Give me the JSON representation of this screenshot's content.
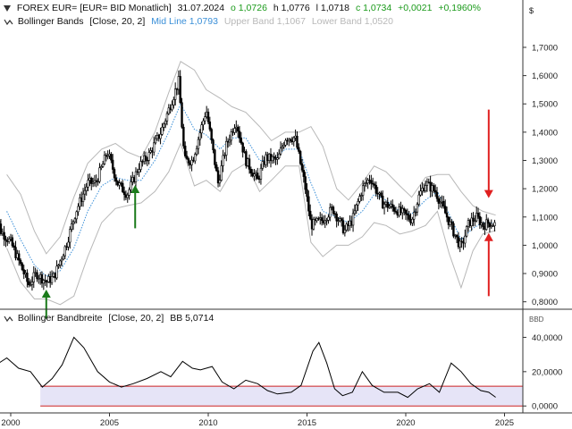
{
  "header": {
    "instrument": "FOREX EUR= [EUR= BID Monatlich]",
    "date": "31.07.2024",
    "open_label": "o 1,0726",
    "high_label": "h 1,0776",
    "low_label": "l 1,0718",
    "close_label": "c 1,0734",
    "change_label": "+0,0021",
    "change_pct_label": "+0,1960%",
    "currency_symbol": "$"
  },
  "indicator_legend": {
    "bands_label": "Bollinger Bands",
    "bands_params": "[Close, 20, 2]",
    "mid_label": "Mid Line 1,0793",
    "upper_label": "Upper Band 1,1067",
    "lower_label": "Lower Band 1,0520"
  },
  "lower_legend": {
    "label": "Bollinger Bandbreite",
    "params": "[Close, 20, 2]",
    "value_label": "BB 5,0714",
    "unit": "BBD"
  },
  "colors": {
    "candle_up": "#ffffff",
    "candle_down": "#000000",
    "mid_line": "#3a8fd8",
    "bands": "#b8b8b8",
    "arrow_up": "#1a7a1a",
    "arrow_down": "#e02020",
    "bandwidth_line": "#000000",
    "zone_fill": "#e6e4f7",
    "zone_border": "#cc2222",
    "change_positive": "#1a9a1a"
  },
  "chart_data": [
    {
      "type": "candlestick",
      "title": "FOREX EUR= [EUR= BID Monatlich]",
      "x_range": [
        1999.0,
        2025.0
      ],
      "y_range": [
        0.78,
        1.76
      ],
      "y_ticks": [
        "0,8000",
        "0,9000",
        "1,0000",
        "1,1000",
        "1,2000",
        "1,3000",
        "1,4000",
        "1,5000",
        "1,6000",
        "1,7000"
      ],
      "x_ticks": [
        "2000",
        "2005",
        "2010",
        "2015",
        "2020",
        "2025"
      ],
      "price_points": [
        [
          1999.0,
          1.17
        ],
        [
          1999.5,
          1.05
        ],
        [
          2000.0,
          1.01
        ],
        [
          2000.5,
          0.93
        ],
        [
          2000.9,
          0.86
        ],
        [
          2001.3,
          0.9
        ],
        [
          2001.8,
          0.87
        ],
        [
          2002.2,
          0.89
        ],
        [
          2002.8,
          1.0
        ],
        [
          2003.3,
          1.12
        ],
        [
          2003.9,
          1.22
        ],
        [
          2004.3,
          1.22
        ],
        [
          2004.9,
          1.33
        ],
        [
          2005.4,
          1.22
        ],
        [
          2005.9,
          1.18
        ],
        [
          2006.5,
          1.28
        ],
        [
          2007.0,
          1.32
        ],
        [
          2007.6,
          1.4
        ],
        [
          2008.0,
          1.48
        ],
        [
          2008.5,
          1.58
        ],
        [
          2008.8,
          1.3
        ],
        [
          2009.2,
          1.3
        ],
        [
          2009.9,
          1.48
        ],
        [
          2010.5,
          1.22
        ],
        [
          2010.9,
          1.35
        ],
        [
          2011.4,
          1.44
        ],
        [
          2011.9,
          1.3
        ],
        [
          2012.5,
          1.23
        ],
        [
          2012.9,
          1.31
        ],
        [
          2013.5,
          1.3
        ],
        [
          2013.9,
          1.38
        ],
        [
          2014.4,
          1.38
        ],
        [
          2014.9,
          1.21
        ],
        [
          2015.2,
          1.07
        ],
        [
          2015.8,
          1.09
        ],
        [
          2016.3,
          1.13
        ],
        [
          2016.9,
          1.05
        ],
        [
          2017.3,
          1.09
        ],
        [
          2017.8,
          1.2
        ],
        [
          2018.2,
          1.24
        ],
        [
          2018.8,
          1.15
        ],
        [
          2019.4,
          1.13
        ],
        [
          2019.9,
          1.11
        ],
        [
          2020.3,
          1.09
        ],
        [
          2020.7,
          1.18
        ],
        [
          2021.0,
          1.22
        ],
        [
          2021.5,
          1.19
        ],
        [
          2021.9,
          1.13
        ],
        [
          2022.4,
          1.05
        ],
        [
          2022.8,
          0.99
        ],
        [
          2023.2,
          1.08
        ],
        [
          2023.6,
          1.1
        ],
        [
          2023.9,
          1.07
        ],
        [
          2024.2,
          1.08
        ],
        [
          2024.55,
          1.0734
        ]
      ],
      "mid_line_points": [
        [
          1999.8,
          1.12
        ],
        [
          2000.5,
          1.02
        ],
        [
          2001.2,
          0.93
        ],
        [
          2001.8,
          0.89
        ],
        [
          2002.5,
          0.91
        ],
        [
          2003.2,
          0.99
        ],
        [
          2003.9,
          1.12
        ],
        [
          2004.6,
          1.21
        ],
        [
          2005.3,
          1.24
        ],
        [
          2005.9,
          1.23
        ],
        [
          2006.6,
          1.23
        ],
        [
          2007.3,
          1.3
        ],
        [
          2008.0,
          1.4
        ],
        [
          2008.6,
          1.5
        ],
        [
          2009.3,
          1.41
        ],
        [
          2009.9,
          1.39
        ],
        [
          2010.6,
          1.34
        ],
        [
          2011.2,
          1.38
        ],
        [
          2011.9,
          1.38
        ],
        [
          2012.6,
          1.3
        ],
        [
          2013.2,
          1.3
        ],
        [
          2013.9,
          1.34
        ],
        [
          2014.6,
          1.34
        ],
        [
          2015.2,
          1.22
        ],
        [
          2015.8,
          1.12
        ],
        [
          2016.5,
          1.1
        ],
        [
          2017.1,
          1.08
        ],
        [
          2017.8,
          1.12
        ],
        [
          2018.4,
          1.18
        ],
        [
          2019.0,
          1.16
        ],
        [
          2019.7,
          1.12
        ],
        [
          2020.3,
          1.11
        ],
        [
          2021.0,
          1.16
        ],
        [
          2021.6,
          1.19
        ],
        [
          2022.2,
          1.11
        ],
        [
          2022.8,
          1.02
        ],
        [
          2023.4,
          1.06
        ],
        [
          2023.9,
          1.08
        ],
        [
          2024.55,
          1.0793
        ]
      ],
      "upper_band_points": [
        [
          1999.8,
          1.25
        ],
        [
          2000.5,
          1.18
        ],
        [
          2001.2,
          1.05
        ],
        [
          2001.8,
          0.97
        ],
        [
          2002.5,
          1.03
        ],
        [
          2003.2,
          1.17
        ],
        [
          2003.9,
          1.29
        ],
        [
          2004.6,
          1.34
        ],
        [
          2005.3,
          1.36
        ],
        [
          2005.9,
          1.33
        ],
        [
          2006.6,
          1.31
        ],
        [
          2007.3,
          1.4
        ],
        [
          2008.0,
          1.54
        ],
        [
          2008.6,
          1.65
        ],
        [
          2009.3,
          1.62
        ],
        [
          2009.9,
          1.55
        ],
        [
          2010.6,
          1.52
        ],
        [
          2011.2,
          1.49
        ],
        [
          2011.9,
          1.47
        ],
        [
          2012.6,
          1.42
        ],
        [
          2013.2,
          1.37
        ],
        [
          2013.9,
          1.4
        ],
        [
          2014.6,
          1.4
        ],
        [
          2015.2,
          1.42
        ],
        [
          2015.8,
          1.35
        ],
        [
          2016.5,
          1.2
        ],
        [
          2017.1,
          1.16
        ],
        [
          2017.8,
          1.22
        ],
        [
          2018.4,
          1.28
        ],
        [
          2019.0,
          1.26
        ],
        [
          2019.7,
          1.21
        ],
        [
          2020.3,
          1.17
        ],
        [
          2021.0,
          1.24
        ],
        [
          2021.6,
          1.25
        ],
        [
          2022.2,
          1.25
        ],
        [
          2022.8,
          1.19
        ],
        [
          2023.4,
          1.14
        ],
        [
          2023.9,
          1.12
        ],
        [
          2024.55,
          1.1067
        ]
      ],
      "lower_band_points": [
        [
          1999.8,
          0.99
        ],
        [
          2000.5,
          0.87
        ],
        [
          2001.2,
          0.81
        ],
        [
          2001.8,
          0.81
        ],
        [
          2002.5,
          0.79
        ],
        [
          2003.2,
          0.82
        ],
        [
          2003.9,
          0.96
        ],
        [
          2004.6,
          1.08
        ],
        [
          2005.3,
          1.13
        ],
        [
          2005.9,
          1.14
        ],
        [
          2006.6,
          1.15
        ],
        [
          2007.3,
          1.19
        ],
        [
          2008.0,
          1.26
        ],
        [
          2008.6,
          1.36
        ],
        [
          2009.3,
          1.21
        ],
        [
          2009.9,
          1.23
        ],
        [
          2010.6,
          1.19
        ],
        [
          2011.2,
          1.26
        ],
        [
          2011.9,
          1.29
        ],
        [
          2012.6,
          1.19
        ],
        [
          2013.2,
          1.23
        ],
        [
          2013.9,
          1.28
        ],
        [
          2014.6,
          1.28
        ],
        [
          2015.2,
          1.01
        ],
        [
          2015.8,
          0.96
        ],
        [
          2016.5,
          1.0
        ],
        [
          2017.1,
          1.0
        ],
        [
          2017.8,
          1.03
        ],
        [
          2018.4,
          1.08
        ],
        [
          2019.0,
          1.07
        ],
        [
          2019.7,
          1.04
        ],
        [
          2020.3,
          1.05
        ],
        [
          2021.0,
          1.07
        ],
        [
          2021.6,
          1.12
        ],
        [
          2022.2,
          0.97
        ],
        [
          2022.8,
          0.85
        ],
        [
          2023.4,
          0.98
        ],
        [
          2023.9,
          1.04
        ],
        [
          2024.55,
          1.052
        ]
      ],
      "annotations": [
        {
          "kind": "arrow-up",
          "x": 2001.8,
          "from_y": 0.74,
          "to_y": 0.84
        },
        {
          "kind": "arrow-up",
          "x": 2006.3,
          "from_y": 1.06,
          "to_y": 1.21
        },
        {
          "kind": "arrow-down",
          "x": 2024.2,
          "from_y": 1.48,
          "to_y": 1.17
        },
        {
          "kind": "arrow-up",
          "x": 2024.2,
          "from_y": 0.82,
          "to_y": 1.04
        }
      ]
    },
    {
      "type": "line",
      "title": "Bollinger Bandbreite",
      "x_range": [
        1999.0,
        2025.0
      ],
      "y_range": [
        -3,
        47
      ],
      "y_ticks": [
        "0,0000",
        "20,0000",
        "40,0000"
      ],
      "points": [
        [
          1999.0,
          22
        ],
        [
          1999.8,
          28
        ],
        [
          2000.4,
          22
        ],
        [
          2001.0,
          20
        ],
        [
          2001.6,
          11
        ],
        [
          2002.1,
          16
        ],
        [
          2002.6,
          24
        ],
        [
          2003.2,
          40
        ],
        [
          2003.7,
          34
        ],
        [
          2004.4,
          20
        ],
        [
          2005.0,
          14
        ],
        [
          2005.6,
          11
        ],
        [
          2006.2,
          13
        ],
        [
          2006.9,
          16
        ],
        [
          2007.6,
          20
        ],
        [
          2008.1,
          17
        ],
        [
          2008.7,
          26
        ],
        [
          2009.2,
          22
        ],
        [
          2009.6,
          21
        ],
        [
          2010.2,
          23
        ],
        [
          2010.7,
          14
        ],
        [
          2011.3,
          10
        ],
        [
          2011.9,
          15
        ],
        [
          2012.5,
          13
        ],
        [
          2013.0,
          9
        ],
        [
          2013.5,
          7
        ],
        [
          2014.2,
          8
        ],
        [
          2014.7,
          12
        ],
        [
          2015.3,
          32
        ],
        [
          2015.6,
          37
        ],
        [
          2016.0,
          25
        ],
        [
          2016.4,
          10
        ],
        [
          2016.8,
          6
        ],
        [
          2017.3,
          8
        ],
        [
          2017.8,
          20
        ],
        [
          2018.3,
          12
        ],
        [
          2018.9,
          8
        ],
        [
          2019.6,
          8
        ],
        [
          2020.1,
          5
        ],
        [
          2020.6,
          10
        ],
        [
          2021.2,
          13
        ],
        [
          2021.7,
          8
        ],
        [
          2022.3,
          25
        ],
        [
          2022.8,
          20
        ],
        [
          2023.3,
          13
        ],
        [
          2023.8,
          9
        ],
        [
          2024.2,
          8
        ],
        [
          2024.55,
          5.0714
        ]
      ],
      "zone": {
        "from": 0,
        "to": 11.5
      },
      "zone_start_x": 2001.5
    }
  ]
}
